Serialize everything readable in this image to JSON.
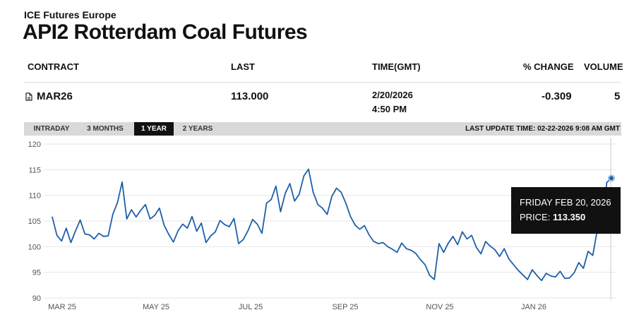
{
  "header": {
    "exchange": "ICE Futures Europe",
    "title": "API2 Rotterdam Coal Futures"
  },
  "table": {
    "columns": [
      "CONTRACT",
      "LAST",
      "TIME(GMT)",
      "% CHANGE",
      "VOLUME"
    ],
    "row": {
      "contract": "MAR26",
      "last": "113.000",
      "date": "2/20/2026",
      "time": "4:50 PM",
      "change": "-0.309",
      "volume": "5"
    }
  },
  "tabs": [
    "INTRADAY",
    "3 MONTHS",
    "1 YEAR",
    "2 YEARS"
  ],
  "active_tab": "1 YEAR",
  "last_update": "LAST UPDATE TIME: 02-22-2026 9:08 AM GMT",
  "tooltip": {
    "date": "FRIDAY FEB 20, 2026",
    "price_label": "PRICE:",
    "price_value": "113.350"
  },
  "colors": {
    "line": "#1f5fa8",
    "tooltip_bg": "#111111",
    "tab_bar": "#d9d9d9",
    "grid": "#e6e6e6"
  },
  "chart_data": {
    "type": "line",
    "title": "",
    "xlabel": "",
    "ylabel": "",
    "ylim": [
      90,
      120
    ],
    "y_ticks": [
      90,
      95,
      100,
      105,
      110,
      115,
      120
    ],
    "x_tick_labels": [
      "MAR 25",
      "MAY 25",
      "JUL 25",
      "SEP 25",
      "NOV 25",
      "JAN 26"
    ],
    "grid": true,
    "series": [
      {
        "values": [
          105.8,
          102.2,
          101.1,
          103.6,
          100.8,
          103.1,
          105.2,
          102.5,
          102.3,
          101.5,
          102.6,
          102.0,
          102.1,
          106.3,
          108.6,
          112.6,
          105.4,
          107.2,
          105.8,
          107.1,
          108.2,
          105.4,
          106.1,
          107.5,
          104.2,
          102.4,
          100.9,
          103.1,
          104.4,
          103.6,
          105.9,
          103.0,
          104.6,
          100.8,
          102.1,
          102.9,
          105.1,
          104.3,
          103.9,
          105.5,
          100.6,
          101.4,
          103.1,
          105.3,
          104.4,
          102.6,
          108.5,
          109.2,
          111.8,
          106.8,
          110.4,
          112.3,
          108.9,
          110.2,
          113.8,
          115.1,
          110.6,
          108.2,
          107.5,
          106.3,
          109.8,
          111.4,
          110.6,
          108.5,
          105.9,
          104.2,
          103.4,
          104.1,
          102.3,
          101.0,
          100.6,
          100.8,
          100.0,
          99.5,
          98.9,
          100.7,
          99.6,
          99.3,
          98.7,
          97.5,
          96.5,
          94.4,
          93.6,
          100.6,
          98.9,
          100.7,
          102.0,
          100.4,
          102.9,
          101.5,
          102.2,
          99.9,
          98.6,
          101.0,
          100.1,
          99.4,
          98.1,
          99.6,
          97.6,
          96.5,
          95.4,
          94.5,
          93.6,
          95.5,
          94.4,
          93.4,
          94.8,
          94.3,
          94.1,
          95.2,
          93.8,
          93.9,
          94.9,
          96.9,
          95.8,
          99.1,
          98.3,
          103.4,
          104.1,
          112.5,
          113.35
        ]
      }
    ]
  }
}
